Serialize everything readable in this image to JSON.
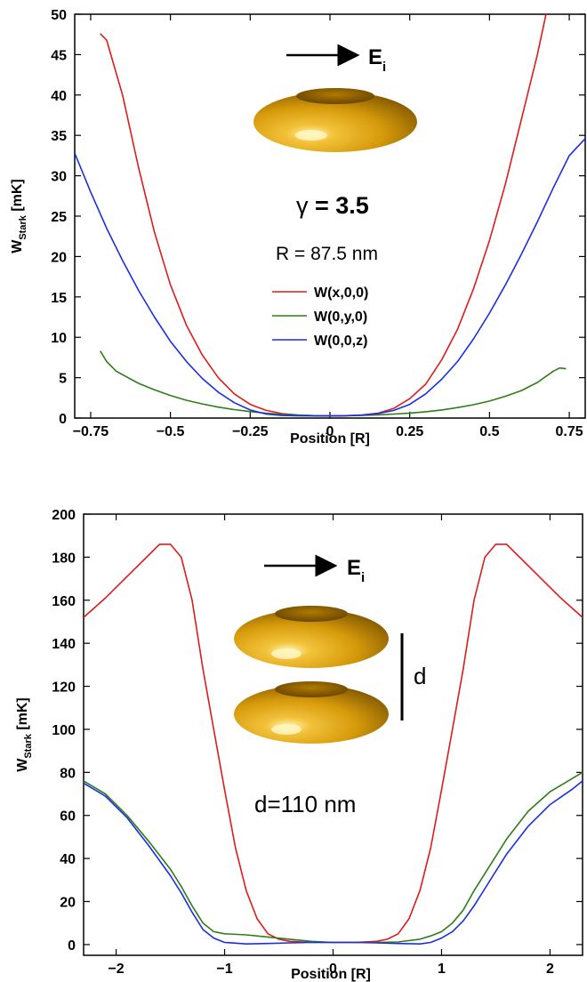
{
  "chart_data": [
    {
      "type": "line",
      "xlabel": "Position [R]",
      "ylabel": "W",
      "ylabel_sub": "Stark",
      "ylabel_unit": " [mK]",
      "xlim": [
        -0.8,
        0.8
      ],
      "ylim": [
        0,
        50
      ],
      "xticks": [
        -0.75,
        -0.5,
        -0.25,
        0,
        0.25,
        0.5,
        0.75
      ],
      "xtick_labels": [
        "−0.75",
        "−0.5",
        "−0.25",
        "0",
        "0.25",
        "0.5",
        "0.75"
      ],
      "yticks": [
        0,
        5,
        10,
        15,
        20,
        25,
        30,
        35,
        40,
        45,
        50
      ],
      "ytick_labels": [
        "0",
        "5",
        "10",
        "15",
        "20",
        "25",
        "30",
        "35",
        "40",
        "45",
        "50"
      ],
      "legend_placement": "center",
      "annotations": {
        "field_label": "E",
        "field_sub": "i",
        "gamma_symbol": "γ",
        "gamma_value": " = 3.5",
        "radius": "R = 87.5 nm"
      },
      "series": [
        {
          "name": "W(x,0,0)",
          "color": "#dd1c1c",
          "points": [
            [
              -0.72,
              47.6
            ],
            [
              -0.7,
              46.8
            ],
            [
              -0.65,
              40
            ],
            [
              -0.6,
              31
            ],
            [
              -0.55,
              23
            ],
            [
              -0.5,
              16.5
            ],
            [
              -0.45,
              11.5
            ],
            [
              -0.4,
              7.8
            ],
            [
              -0.35,
              5.0
            ],
            [
              -0.3,
              3.0
            ],
            [
              -0.25,
              1.7
            ],
            [
              -0.2,
              0.95
            ],
            [
              -0.15,
              0.55
            ],
            [
              -0.1,
              0.38
            ],
            [
              -0.05,
              0.3
            ],
            [
              0,
              0.28
            ],
            [
              0.05,
              0.3
            ],
            [
              0.1,
              0.38
            ],
            [
              0.15,
              0.6
            ],
            [
              0.2,
              1.2
            ],
            [
              0.25,
              2.4
            ],
            [
              0.3,
              4.2
            ],
            [
              0.35,
              7.2
            ],
            [
              0.4,
              11.0
            ],
            [
              0.45,
              16.0
            ],
            [
              0.5,
              22.0
            ],
            [
              0.55,
              29.0
            ],
            [
              0.6,
              37.0
            ],
            [
              0.65,
              45.0
            ],
            [
              0.68,
              50.5
            ]
          ]
        },
        {
          "name": "W(0,y,0)",
          "color": "#2e7d1a",
          "points": [
            [
              -0.72,
              8.3
            ],
            [
              -0.7,
              7.0
            ],
            [
              -0.67,
              5.8
            ],
            [
              -0.6,
              4.3
            ],
            [
              -0.55,
              3.5
            ],
            [
              -0.5,
              2.8
            ],
            [
              -0.45,
              2.2
            ],
            [
              -0.4,
              1.75
            ],
            [
              -0.35,
              1.35
            ],
            [
              -0.3,
              1.05
            ],
            [
              -0.25,
              0.8
            ],
            [
              -0.2,
              0.6
            ],
            [
              -0.15,
              0.45
            ],
            [
              -0.1,
              0.36
            ],
            [
              -0.05,
              0.3
            ],
            [
              0,
              0.28
            ],
            [
              0.05,
              0.3
            ],
            [
              0.1,
              0.34
            ],
            [
              0.15,
              0.4
            ],
            [
              0.2,
              0.5
            ],
            [
              0.25,
              0.62
            ],
            [
              0.3,
              0.78
            ],
            [
              0.35,
              1.0
            ],
            [
              0.4,
              1.3
            ],
            [
              0.45,
              1.65
            ],
            [
              0.5,
              2.1
            ],
            [
              0.55,
              2.7
            ],
            [
              0.6,
              3.4
            ],
            [
              0.65,
              4.4
            ],
            [
              0.7,
              5.8
            ],
            [
              0.72,
              6.2
            ],
            [
              0.74,
              6.1
            ]
          ]
        },
        {
          "name": "W(0,0,z)",
          "color": "#1a2fe0",
          "points": [
            [
              -0.8,
              32.8
            ],
            [
              -0.75,
              28
            ],
            [
              -0.7,
              23.5
            ],
            [
              -0.65,
              19.5
            ],
            [
              -0.6,
              15.8
            ],
            [
              -0.55,
              12.5
            ],
            [
              -0.5,
              9.5
            ],
            [
              -0.45,
              7.0
            ],
            [
              -0.4,
              4.9
            ],
            [
              -0.35,
              3.2
            ],
            [
              -0.3,
              1.9
            ],
            [
              -0.25,
              1.0
            ],
            [
              -0.2,
              0.5
            ],
            [
              -0.15,
              0.32
            ],
            [
              -0.1,
              0.27
            ],
            [
              -0.05,
              0.26
            ],
            [
              0,
              0.26
            ],
            [
              0.05,
              0.27
            ],
            [
              0.1,
              0.35
            ],
            [
              0.15,
              0.55
            ],
            [
              0.2,
              0.95
            ],
            [
              0.25,
              1.7
            ],
            [
              0.3,
              3.0
            ],
            [
              0.35,
              4.8
            ],
            [
              0.4,
              7.0
            ],
            [
              0.45,
              9.8
            ],
            [
              0.5,
              13.0
            ],
            [
              0.55,
              16.5
            ],
            [
              0.6,
              20.3
            ],
            [
              0.65,
              24.3
            ],
            [
              0.7,
              28.5
            ],
            [
              0.75,
              32.5
            ],
            [
              0.8,
              34.6
            ]
          ]
        }
      ]
    },
    {
      "type": "line",
      "xlabel": "Position [R]",
      "ylabel": "W",
      "ylabel_sub": "Stark",
      "ylabel_unit": " [mK]",
      "xlim": [
        -2.3,
        2.3
      ],
      "ylim": [
        -5,
        200
      ],
      "xticks": [
        -2,
        -1,
        0,
        1,
        2
      ],
      "xtick_labels": [
        "−2",
        "−1",
        "0",
        "1",
        "2"
      ],
      "yticks": [
        0,
        20,
        40,
        60,
        80,
        100,
        120,
        140,
        160,
        180,
        200
      ],
      "ytick_labels": [
        "0",
        "20",
        "40",
        "60",
        "80",
        "100",
        "120",
        "140",
        "160",
        "180",
        "200"
      ],
      "annotations": {
        "field_label": "E",
        "field_sub": "i",
        "gap_label": "d",
        "distance": "d=110 nm"
      },
      "series": [
        {
          "color": "#dd1c1c",
          "points": [
            [
              -2.3,
              152
            ],
            [
              -2.1,
              161
            ],
            [
              -1.9,
              171
            ],
            [
              -1.7,
              181
            ],
            [
              -1.6,
              186
            ],
            [
              -1.5,
              186
            ],
            [
              -1.4,
              180
            ],
            [
              -1.3,
              160
            ],
            [
              -1.2,
              128
            ],
            [
              -1.1,
              100
            ],
            [
              -1.0,
              72
            ],
            [
              -0.9,
              45
            ],
            [
              -0.8,
              25
            ],
            [
              -0.7,
              12
            ],
            [
              -0.6,
              5
            ],
            [
              -0.5,
              2.5
            ],
            [
              -0.4,
              1.5
            ],
            [
              -0.2,
              1.0
            ],
            [
              0,
              1.0
            ],
            [
              0.2,
              1.0
            ],
            [
              0.4,
              1.5
            ],
            [
              0.5,
              2.5
            ],
            [
              0.6,
              5
            ],
            [
              0.7,
              12
            ],
            [
              0.8,
              25
            ],
            [
              0.9,
              45
            ],
            [
              1.0,
              72
            ],
            [
              1.1,
              100
            ],
            [
              1.2,
              128
            ],
            [
              1.3,
              160
            ],
            [
              1.4,
              180
            ],
            [
              1.5,
              186
            ],
            [
              1.6,
              186
            ],
            [
              1.7,
              181
            ],
            [
              1.9,
              171
            ],
            [
              2.1,
              161
            ],
            [
              2.3,
              152
            ]
          ]
        },
        {
          "color": "#2e7d1a",
          "points": [
            [
              -2.3,
              76
            ],
            [
              -2.1,
              70
            ],
            [
              -1.9,
              60
            ],
            [
              -1.7,
              48
            ],
            [
              -1.5,
              35
            ],
            [
              -1.4,
              27
            ],
            [
              -1.3,
              18
            ],
            [
              -1.2,
              10
            ],
            [
              -1.1,
              6
            ],
            [
              -1.0,
              5
            ],
            [
              -0.8,
              4.5
            ],
            [
              -0.6,
              3.5
            ],
            [
              -0.4,
              2.5
            ],
            [
              -0.2,
              1.5
            ],
            [
              0,
              1.0
            ],
            [
              0.2,
              1.0
            ],
            [
              0.4,
              1.0
            ],
            [
              0.6,
              1.2
            ],
            [
              0.8,
              2.5
            ],
            [
              0.9,
              4
            ],
            [
              1.0,
              6
            ],
            [
              1.1,
              10
            ],
            [
              1.2,
              16
            ],
            [
              1.3,
              25
            ],
            [
              1.4,
              33
            ],
            [
              1.5,
              41
            ],
            [
              1.6,
              49
            ],
            [
              1.8,
              62
            ],
            [
              2.0,
              71
            ],
            [
              2.2,
              77
            ],
            [
              2.3,
              80
            ]
          ]
        },
        {
          "color": "#1a2fe0",
          "points": [
            [
              -2.3,
              75
            ],
            [
              -2.1,
              69
            ],
            [
              -1.9,
              59
            ],
            [
              -1.7,
              46
            ],
            [
              -1.5,
              32
            ],
            [
              -1.4,
              24
            ],
            [
              -1.3,
              15
            ],
            [
              -1.2,
              7
            ],
            [
              -1.1,
              3
            ],
            [
              -1.0,
              1
            ],
            [
              -0.8,
              0.3
            ],
            [
              -0.6,
              0.5
            ],
            [
              -0.4,
              0.8
            ],
            [
              -0.2,
              1.0
            ],
            [
              0,
              1.0
            ],
            [
              0.2,
              1.0
            ],
            [
              0.4,
              0.8
            ],
            [
              0.6,
              0.5
            ],
            [
              0.8,
              0.3
            ],
            [
              0.9,
              1
            ],
            [
              1.0,
              3
            ],
            [
              1.1,
              6
            ],
            [
              1.2,
              11
            ],
            [
              1.3,
              18
            ],
            [
              1.4,
              26
            ],
            [
              1.5,
              34
            ],
            [
              1.6,
              42
            ],
            [
              1.8,
              55
            ],
            [
              2.0,
              65
            ],
            [
              2.2,
              72
            ],
            [
              2.3,
              76
            ]
          ]
        }
      ]
    }
  ]
}
